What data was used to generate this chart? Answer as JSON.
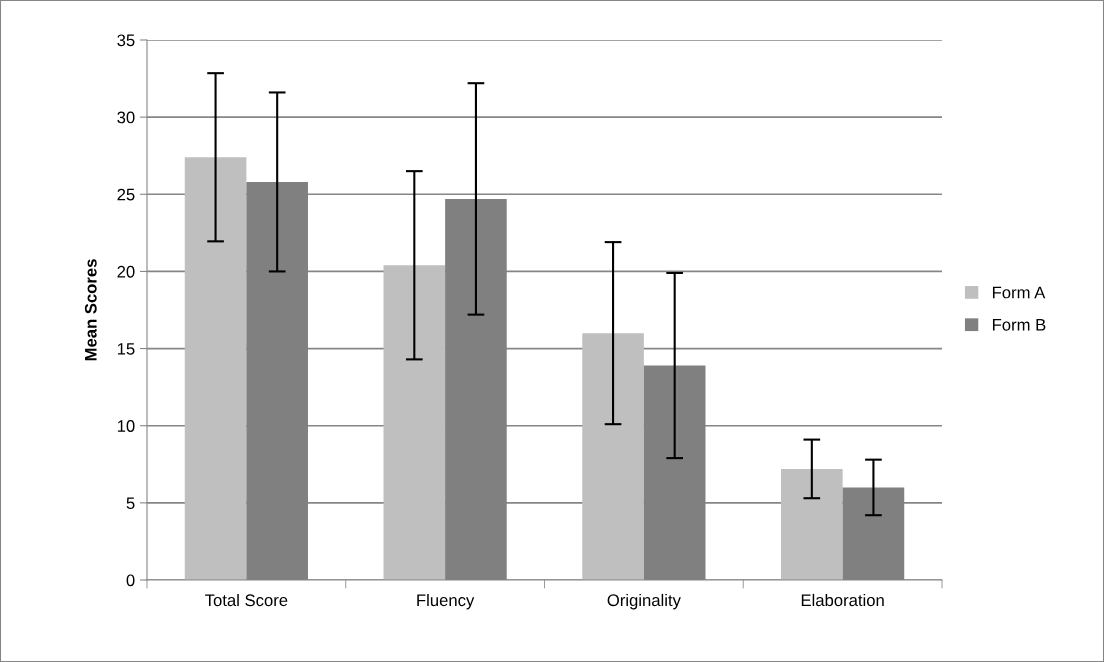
{
  "chart_data": {
    "type": "bar",
    "ylabel": "Mean Scores",
    "categories": [
      "Total Score",
      "Fluency",
      "Originality",
      "Elaboration"
    ],
    "series": [
      {
        "name": "Form A",
        "color": "#bfbfbf",
        "values": [
          27.4,
          20.4,
          16.0,
          7.2
        ],
        "errors": [
          5.45,
          6.1,
          5.9,
          1.9
        ]
      },
      {
        "name": "Form B",
        "color": "#808080",
        "values": [
          25.8,
          24.7,
          13.9,
          6.0
        ],
        "errors": [
          5.8,
          7.5,
          6.0,
          1.8
        ]
      }
    ],
    "ylim": [
      0,
      35
    ],
    "yticks": [
      0,
      5,
      10,
      15,
      20,
      25,
      30,
      35
    ],
    "grid": "y",
    "legend": "right"
  }
}
